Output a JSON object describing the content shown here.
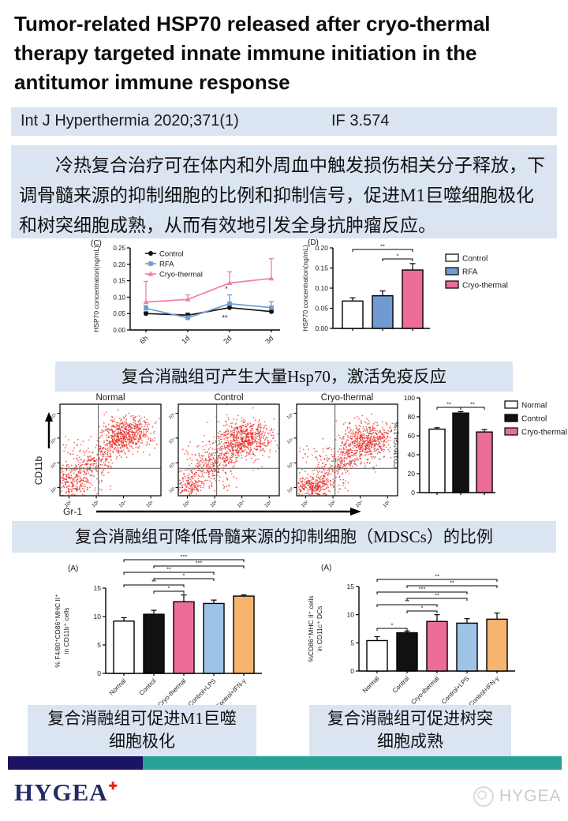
{
  "header": {
    "title": "Tumor-related HSP70 released after cryo-thermal therapy targeted innate immune initiation in the antitumor immune response",
    "journal": "Int J Hyperthermia 2020;371(1)",
    "impact_factor": "IF 3.574"
  },
  "abstract": {
    "text": "冷热复合治疗可在体内和外周血中触发损伤相关分子释放，下调骨髓来源的抑制细胞的比例和抑制信号，促进M1巨噬细胞极化和树突细胞成熟，从而有效地引发全身抗肿瘤反应。"
  },
  "captions": {
    "c1": "复合消融组可产生大量Hsp70，激活免疫反应",
    "c2": "复合消融组可降低骨髓来源的抑制细胞（MDSCs）的比例",
    "c3_line1": "复合消融组可促进M1巨噬",
    "c3_line2": "细胞极化",
    "c4_line1": "复合消融组可促进树突",
    "c4_line2": "细胞成熟"
  },
  "footer": {
    "logo": "HYGEA",
    "watermark": "HYGEA"
  },
  "colors": {
    "box_blue": "#dbe5f2",
    "navy_bar": "#1b1464",
    "teal_bar": "#27a294",
    "logo_navy": "#232a67",
    "logo_red": "#e8231f",
    "pink": "#ec6d97",
    "rfa_blue": "#6f9bd2",
    "lps_blue": "#9dc3e6",
    "ifn_orange": "#f7b46e",
    "scatter_red": "#e8241f"
  },
  "chart_data": [
    {
      "id": "fig_c",
      "type": "line",
      "panel_label": "(C)",
      "x": [
        "6h",
        "1d",
        "2d",
        "3d"
      ],
      "ylabel": "HSP70 concentration(ng/mL)",
      "ylim": [
        0,
        0.25
      ],
      "yticks": [
        0,
        0.05,
        0.1,
        0.15,
        0.2,
        0.25
      ],
      "series": [
        {
          "name": "Control",
          "marker": "circle",
          "color": "#111111",
          "values": [
            0.05,
            0.045,
            0.068,
            0.056
          ],
          "err": [
            0.005,
            0.006,
            0.007,
            0.006
          ]
        },
        {
          "name": "RFA",
          "marker": "square",
          "color": "#6f9bd2",
          "values": [
            0.066,
            0.037,
            0.08,
            0.068
          ],
          "err": [
            0.008,
            0.006,
            0.027,
            0.018
          ]
        },
        {
          "name": "Cryo-thermal",
          "marker": "triangle",
          "color": "#ef7fa3",
          "values": [
            0.085,
            0.093,
            0.143,
            0.157
          ],
          "err": [
            0.063,
            0.014,
            0.034,
            0.06
          ]
        }
      ],
      "annotations": [
        {
          "text": "*",
          "xi": 2,
          "v": 0.118,
          "dx": -4
        },
        {
          "text": "**",
          "xi": 2,
          "v": 0.03,
          "dx": -6
        }
      ]
    },
    {
      "id": "fig_d",
      "type": "bar",
      "panel_label": "(D)",
      "categories": [
        "Control",
        "RFA",
        "Cryo-thermal"
      ],
      "values": [
        0.068,
        0.081,
        0.145
      ],
      "errors": [
        0.008,
        0.012,
        0.016
      ],
      "colors": [
        "#ffffff",
        "#6f9bd2",
        "#ec6d97"
      ],
      "legend": [
        "Control",
        "RFA",
        "Cryo-thermal"
      ],
      "ylabel": "HSP70 concentration(ng/mL)",
      "ylim": [
        0,
        0.2
      ],
      "yticks": [
        0,
        0.05,
        0.1,
        0.15,
        0.2
      ],
      "sig": [
        {
          "from": 0,
          "to": 2,
          "label": "**"
        },
        {
          "from": 1,
          "to": 2,
          "label": "*"
        }
      ]
    },
    {
      "id": "flow",
      "type": "scatter",
      "xlabel": "Gr-1",
      "ylabel": "CD11b",
      "ticks": [
        "10²",
        "10³",
        "10⁴",
        "10⁵"
      ],
      "panels": [
        {
          "title": "Normal",
          "clusters": [
            {
              "kind": "blob",
              "cx": 0.68,
              "cy": 0.68,
              "sx": 0.12,
              "sy": 0.085,
              "n": 520
            },
            {
              "kind": "line",
              "x1": 0.22,
              "y1": 0.28,
              "x2": 0.62,
              "y2": 0.6,
              "s": 0.07,
              "n": 260
            },
            {
              "kind": "blob",
              "cx": 0.12,
              "cy": 0.14,
              "sx": 0.09,
              "sy": 0.1,
              "n": 220
            },
            {
              "kind": "uni",
              "x": 0.03,
              "y": 0.05,
              "w": 0.5,
              "h": 0.6,
              "n": 110
            }
          ]
        },
        {
          "title": "Control",
          "clusters": [
            {
              "kind": "blob",
              "cx": 0.66,
              "cy": 0.63,
              "sx": 0.14,
              "sy": 0.1,
              "n": 600
            },
            {
              "kind": "line",
              "x1": 0.2,
              "y1": 0.25,
              "x2": 0.6,
              "y2": 0.55,
              "s": 0.08,
              "n": 300
            },
            {
              "kind": "blob",
              "cx": 0.12,
              "cy": 0.12,
              "sx": 0.08,
              "sy": 0.08,
              "n": 150
            },
            {
              "kind": "uni",
              "x": 0.03,
              "y": 0.05,
              "w": 0.55,
              "h": 0.55,
              "n": 110
            }
          ]
        },
        {
          "title": "Cryo-thermal",
          "clusters": [
            {
              "kind": "blob",
              "cx": 0.7,
              "cy": 0.6,
              "sx": 0.13,
              "sy": 0.1,
              "n": 520
            },
            {
              "kind": "line",
              "x1": 0.25,
              "y1": 0.22,
              "x2": 0.65,
              "y2": 0.52,
              "s": 0.07,
              "n": 240
            },
            {
              "kind": "blob",
              "cx": 0.17,
              "cy": 0.1,
              "sx": 0.11,
              "sy": 0.055,
              "n": 260
            },
            {
              "kind": "uni",
              "x": 0.03,
              "y": 0.05,
              "w": 0.5,
              "h": 0.5,
              "n": 110
            }
          ]
        }
      ]
    },
    {
      "id": "mdsc",
      "type": "bar",
      "categories": [
        "Normal",
        "Control",
        "Cryo-thermal"
      ],
      "values": [
        67,
        84,
        64
      ],
      "errors": [
        1.5,
        1.5,
        2.5
      ],
      "colors": [
        "#ffffff",
        "#111111",
        "#ec6d97"
      ],
      "legend": [
        "Normal",
        "Control",
        "Cryo-thermal"
      ],
      "ylabel": "CD11b⁺Gr-1⁺%",
      "ylim": [
        0,
        100
      ],
      "yticks": [
        0,
        20,
        40,
        60,
        80,
        100
      ],
      "sig": [
        {
          "from": 0,
          "to": 1,
          "label": "**"
        },
        {
          "from": 1,
          "to": 2,
          "label": "**"
        }
      ]
    },
    {
      "id": "m1",
      "type": "bar",
      "panel_label": "(A)",
      "categories": [
        "Normal",
        "Control",
        "Cryo-thermal",
        "Control+LPS",
        "Control+IFN-γ"
      ],
      "values": [
        9.2,
        10.4,
        12.6,
        12.3,
        13.6
      ],
      "errors": [
        0.6,
        0.7,
        1.2,
        0.6,
        0.2
      ],
      "colors": [
        "#ffffff",
        "#111111",
        "#ec6d97",
        "#9dc3e6",
        "#f7b46e"
      ],
      "ylabel": "% F4/80⁺CD86⁺MHC II⁺\nin CD11b⁺ cells",
      "ylim": [
        0,
        15
      ],
      "yticks": [
        0,
        5,
        10,
        15
      ],
      "sig": [
        {
          "from": 1,
          "to": 2,
          "label": "*"
        },
        {
          "from": 0,
          "to": 2,
          "label": "**"
        },
        {
          "from": 1,
          "to": 3,
          "label": "*"
        },
        {
          "from": 0,
          "to": 3,
          "label": "**"
        },
        {
          "from": 1,
          "to": 4,
          "label": "***"
        },
        {
          "from": 0,
          "to": 4,
          "label": "***"
        }
      ]
    },
    {
      "id": "dc",
      "type": "bar",
      "panel_label": "(A)",
      "categories": [
        "Normal",
        "Control",
        "Cryo-thermal",
        "Control+LPS",
        "Control+IFN-γ"
      ],
      "values": [
        5.4,
        6.8,
        8.8,
        8.5,
        9.2
      ],
      "errors": [
        0.7,
        0.3,
        1.2,
        0.8,
        1.1
      ],
      "colors": [
        "#ffffff",
        "#111111",
        "#ec6d97",
        "#9dc3e6",
        "#f7b46e"
      ],
      "ylabel": "%CD86⁺MHC II⁺ cells\nin CD11c⁺ DCs",
      "ylim": [
        0,
        15
      ],
      "yticks": [
        0,
        5,
        10,
        15
      ],
      "sig": [
        {
          "from": 0,
          "to": 1,
          "label": "*"
        },
        {
          "from": 1,
          "to": 2,
          "label": "*"
        },
        {
          "from": 0,
          "to": 2,
          "label": "**"
        },
        {
          "from": 1,
          "to": 3,
          "label": "**"
        },
        {
          "from": 0,
          "to": 3,
          "label": "***"
        },
        {
          "from": 1,
          "to": 4,
          "label": "**"
        },
        {
          "from": 0,
          "to": 4,
          "label": "**"
        }
      ]
    }
  ]
}
